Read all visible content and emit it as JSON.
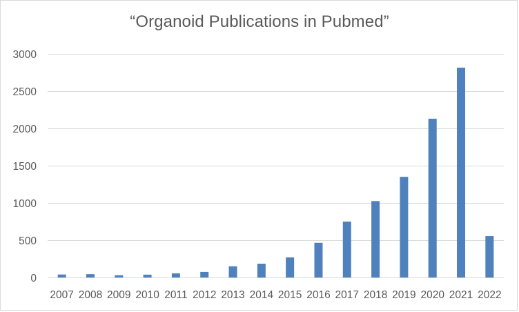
{
  "chart_data": {
    "type": "bar",
    "title": "“Organoid Publications in Pubmed”",
    "xlabel": "",
    "ylabel": "",
    "categories": [
      "2007",
      "2008",
      "2009",
      "2010",
      "2011",
      "2012",
      "2013",
      "2014",
      "2015",
      "2016",
      "2017",
      "2018",
      "2019",
      "2020",
      "2021",
      "2022"
    ],
    "values": [
      40,
      45,
      30,
      38,
      55,
      75,
      150,
      185,
      270,
      465,
      750,
      1025,
      1350,
      2130,
      2815,
      555
    ],
    "ylim": [
      0,
      3000
    ],
    "yticks": [
      0,
      500,
      1000,
      1500,
      2000,
      2500,
      3000
    ],
    "grid": true,
    "legend": "none",
    "bar_color": "#4f81bd",
    "grid_color": "#d9d9d9",
    "text_color": "#595959"
  }
}
